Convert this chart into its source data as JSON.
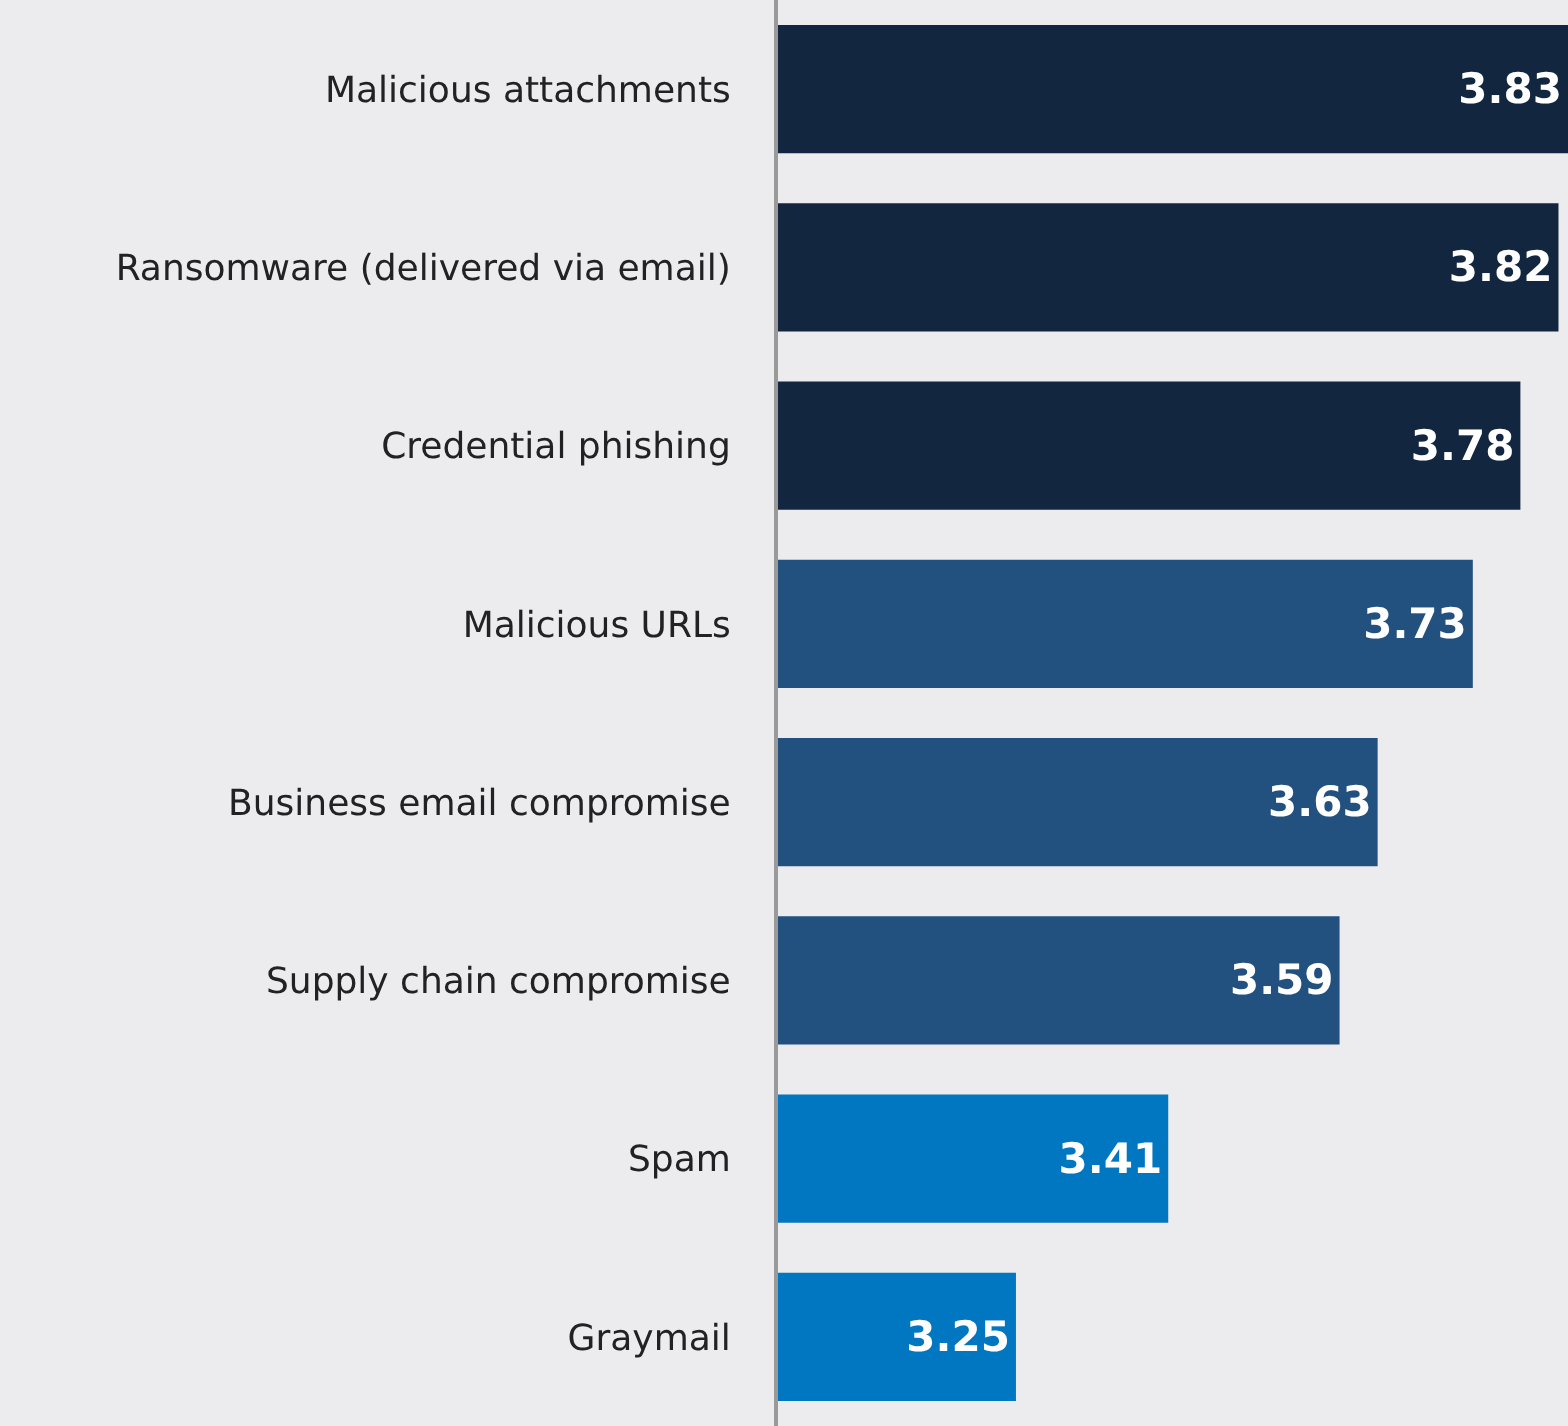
{
  "chart_data": {
    "type": "bar",
    "orientation": "horizontal",
    "categories": [
      "Malicious attachments",
      "Ransomware (delivered via email)",
      "Credential phishing",
      "Malicious URLs",
      "Business email compromise",
      "Supply chain compromise",
      "Spam",
      "Graymail"
    ],
    "values": [
      3.83,
      3.82,
      3.78,
      3.73,
      3.63,
      3.59,
      3.41,
      3.25
    ],
    "colors": [
      "#12263f",
      "#12263f",
      "#12263f",
      "#22507f",
      "#22507f",
      "#22507f",
      "#0077c0",
      "#0077c0"
    ],
    "xlim": [
      3.0,
      3.83
    ],
    "tick_labels": "y",
    "data_labels": true
  }
}
